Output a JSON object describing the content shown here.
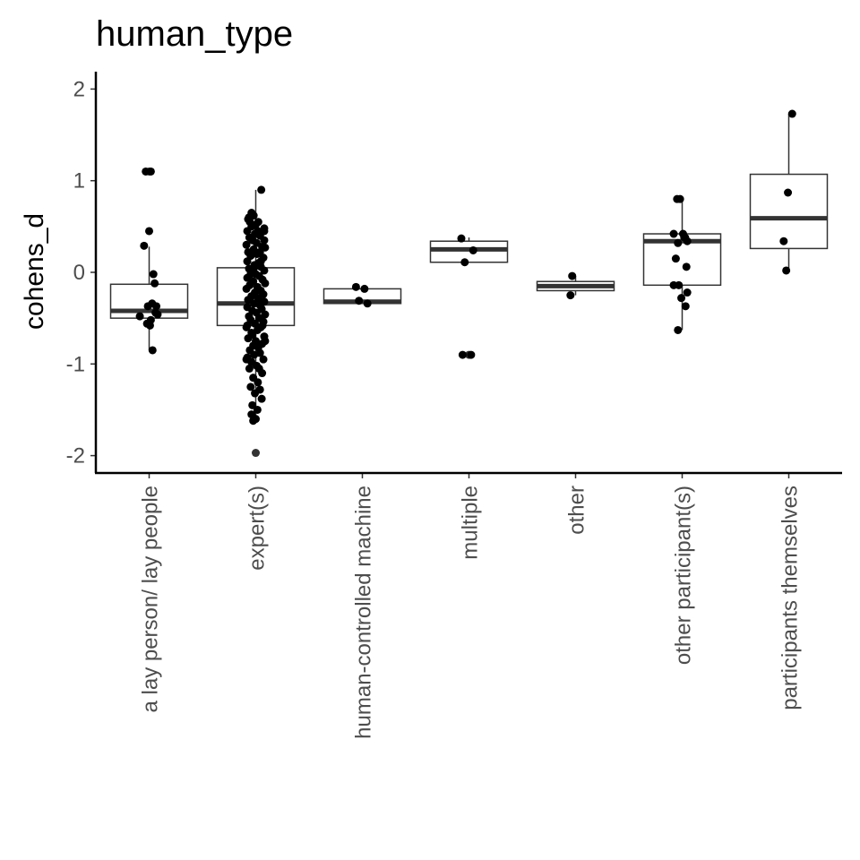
{
  "chart_data": {
    "type": "box",
    "title": "human_type",
    "xlabel": "",
    "ylabel": "cohens_d",
    "ylim": [
      -2.2,
      2.2
    ],
    "yticks": [
      -2,
      -1,
      0,
      1,
      2
    ],
    "ytick_labels": [
      "-2",
      "-1",
      "0",
      "1",
      "2"
    ],
    "grid": false,
    "legend": "none",
    "categories": [
      "a lay person/ lay people",
      "expert(s)",
      "human-controlled machine",
      "multiple",
      "other",
      "other participant(s)",
      "participants themselves"
    ],
    "boxes": [
      {
        "q1": -0.5,
        "median": -0.42,
        "q3": -0.13,
        "whisker_low": -0.85,
        "whisker_high": 0.28,
        "outliers": [
          1.1
        ]
      },
      {
        "q1": -0.58,
        "median": -0.34,
        "q3": 0.05,
        "whisker_low": -1.62,
        "whisker_high": 0.9,
        "outliers": [
          -1.97
        ]
      },
      {
        "q1": -0.34,
        "median": -0.32,
        "q3": -0.18,
        "whisker_low": -0.34,
        "whisker_high": -0.16,
        "outliers": []
      },
      {
        "q1": 0.11,
        "median": 0.25,
        "q3": 0.34,
        "whisker_low": 0.11,
        "whisker_high": 0.38,
        "outliers": [
          -0.9
        ]
      },
      {
        "q1": -0.2,
        "median": -0.15,
        "q3": -0.1,
        "whisker_low": -0.25,
        "whisker_high": -0.04,
        "outliers": []
      },
      {
        "q1": -0.14,
        "median": 0.34,
        "q3": 0.42,
        "whisker_low": -0.63,
        "whisker_high": 0.8,
        "outliers": []
      },
      {
        "q1": 0.26,
        "median": 0.59,
        "q3": 1.07,
        "whisker_low": 0.02,
        "whisker_high": 1.73,
        "outliers": []
      }
    ],
    "points": [
      [
        [
          -0.08,
          1.1
        ],
        [
          0.04,
          1.1
        ],
        [
          0.0,
          0.45
        ],
        [
          -0.12,
          0.29
        ],
        [
          0.1,
          -0.02
        ],
        [
          0.13,
          -0.12
        ],
        [
          0.07,
          -0.34
        ],
        [
          0.17,
          -0.37
        ],
        [
          -0.03,
          -0.37
        ],
        [
          0.2,
          -0.46
        ],
        [
          0.15,
          -0.44
        ],
        [
          -0.22,
          -0.48
        ],
        [
          0.04,
          -0.52
        ],
        [
          -0.05,
          -0.56
        ],
        [
          0.02,
          -0.58
        ],
        [
          0.08,
          -0.85
        ]
      ],
      [
        [
          0.13,
          0.9
        ],
        [
          -0.1,
          0.65
        ],
        [
          -0.05,
          0.62
        ],
        [
          -0.18,
          0.58
        ],
        [
          -0.14,
          0.55
        ],
        [
          0.0,
          0.52
        ],
        [
          -0.1,
          0.5
        ],
        [
          0.2,
          0.48
        ],
        [
          -0.2,
          0.45
        ],
        [
          0.05,
          0.45
        ],
        [
          -0.02,
          0.42
        ],
        [
          0.1,
          0.4
        ],
        [
          0.2,
          0.35
        ],
        [
          -0.15,
          0.38
        ],
        [
          -0.08,
          0.35
        ],
        [
          -0.22,
          0.3
        ],
        [
          0.02,
          0.32
        ],
        [
          0.15,
          0.28
        ],
        [
          0.22,
          0.27
        ],
        [
          -0.05,
          0.25
        ],
        [
          -0.18,
          0.22
        ],
        [
          0.1,
          0.22
        ],
        [
          0.03,
          0.2
        ],
        [
          -0.12,
          0.18
        ],
        [
          0.18,
          0.16
        ],
        [
          -0.2,
          0.12
        ],
        [
          0.06,
          0.1
        ],
        [
          -0.03,
          0.08
        ],
        [
          0.12,
          0.06
        ],
        [
          -0.16,
          0.04
        ],
        [
          0.2,
          0.02
        ],
        [
          -0.1,
          0.0
        ],
        [
          0.0,
          -0.02
        ],
        [
          0.08,
          -0.04
        ],
        [
          -0.2,
          -0.06
        ],
        [
          0.16,
          -0.08
        ],
        [
          -0.06,
          -0.1
        ],
        [
          0.22,
          -0.12
        ],
        [
          -0.14,
          -0.14
        ],
        [
          0.04,
          -0.16
        ],
        [
          -0.22,
          -0.18
        ],
        [
          0.12,
          -0.2
        ],
        [
          -0.02,
          -0.22
        ],
        [
          0.18,
          -0.24
        ],
        [
          -0.1,
          -0.26
        ],
        [
          0.06,
          -0.28
        ],
        [
          -0.18,
          -0.3
        ],
        [
          0.2,
          -0.32
        ],
        [
          -0.04,
          -0.34
        ],
        [
          0.1,
          -0.36
        ],
        [
          -0.2,
          -0.38
        ],
        [
          0.14,
          -0.4
        ],
        [
          -0.08,
          -0.42
        ],
        [
          0.02,
          -0.44
        ],
        [
          0.22,
          -0.46
        ],
        [
          -0.16,
          -0.48
        ],
        [
          0.08,
          -0.5
        ],
        [
          -0.12,
          -0.52
        ],
        [
          0.18,
          -0.54
        ],
        [
          -0.02,
          -0.56
        ],
        [
          -0.2,
          -0.58
        ],
        [
          0.12,
          -0.6
        ],
        [
          0.04,
          -0.63
        ],
        [
          -0.1,
          -0.66
        ],
        [
          0.2,
          -0.7
        ],
        [
          -0.18,
          -0.72
        ],
        [
          0.0,
          -0.75
        ],
        [
          0.15,
          -0.78
        ],
        [
          -0.06,
          -0.8
        ],
        [
          0.06,
          -0.82
        ],
        [
          -0.14,
          -0.85
        ],
        [
          0.1,
          -0.88
        ],
        [
          -0.04,
          -0.9
        ],
        [
          -0.2,
          -0.93
        ],
        [
          0.18,
          -0.95
        ],
        [
          -0.1,
          -0.98
        ],
        [
          0.02,
          -1.02
        ],
        [
          0.08,
          -1.05
        ],
        [
          -0.15,
          -1.05
        ],
        [
          0.15,
          -1.1
        ],
        [
          -0.06,
          -1.15
        ],
        [
          0.05,
          -1.2
        ],
        [
          -0.12,
          -1.25
        ],
        [
          0.1,
          -1.28
        ],
        [
          -0.02,
          -1.32
        ],
        [
          0.14,
          -1.38
        ],
        [
          -0.08,
          -1.45
        ],
        [
          0.04,
          -1.5
        ],
        [
          -0.1,
          -1.55
        ],
        [
          0.0,
          -1.6
        ],
        [
          -0.06,
          -1.62
        ],
        [
          -0.22,
          -0.6
        ],
        [
          0.22,
          -0.75
        ],
        [
          -0.22,
          -0.95
        ],
        [
          0.2,
          0.45
        ],
        [
          -0.16,
          0.6
        ],
        [
          0.12,
          0.12
        ],
        [
          -0.12,
          -0.02
        ],
        [
          0.16,
          -0.58
        ],
        [
          -0.04,
          0.05
        ],
        [
          0.06,
          0.55
        ],
        [
          -0.08,
          -0.68
        ]
      ],
      [
        [
          -0.08,
          -0.31
        ],
        [
          0.05,
          -0.18
        ],
        [
          -0.15,
          -0.16
        ],
        [
          0.12,
          -0.34
        ]
      ],
      [
        [
          -0.18,
          0.37
        ],
        [
          0.1,
          0.24
        ],
        [
          -0.1,
          0.11
        ],
        [
          -0.15,
          -0.9
        ],
        [
          0.05,
          -0.9
        ]
      ],
      [
        [
          -0.08,
          -0.04
        ],
        [
          -0.12,
          -0.25
        ]
      ],
      [
        [
          -0.12,
          0.8
        ],
        [
          -0.05,
          0.8
        ],
        [
          -0.2,
          0.42
        ],
        [
          0.02,
          0.42
        ],
        [
          0.07,
          0.38
        ],
        [
          0.12,
          0.34
        ],
        [
          -0.1,
          0.32
        ],
        [
          0.05,
          0.38
        ],
        [
          -0.15,
          0.15
        ],
        [
          0.1,
          0.06
        ],
        [
          -0.2,
          -0.14
        ],
        [
          -0.08,
          -0.14
        ],
        [
          0.12,
          -0.22
        ],
        [
          -0.02,
          -0.28
        ],
        [
          0.08,
          -0.37
        ],
        [
          -0.1,
          -0.63
        ]
      ],
      [
        [
          0.08,
          1.73
        ],
        [
          -0.02,
          0.87
        ],
        [
          -0.12,
          0.34
        ],
        [
          -0.06,
          0.02
        ]
      ]
    ]
  }
}
